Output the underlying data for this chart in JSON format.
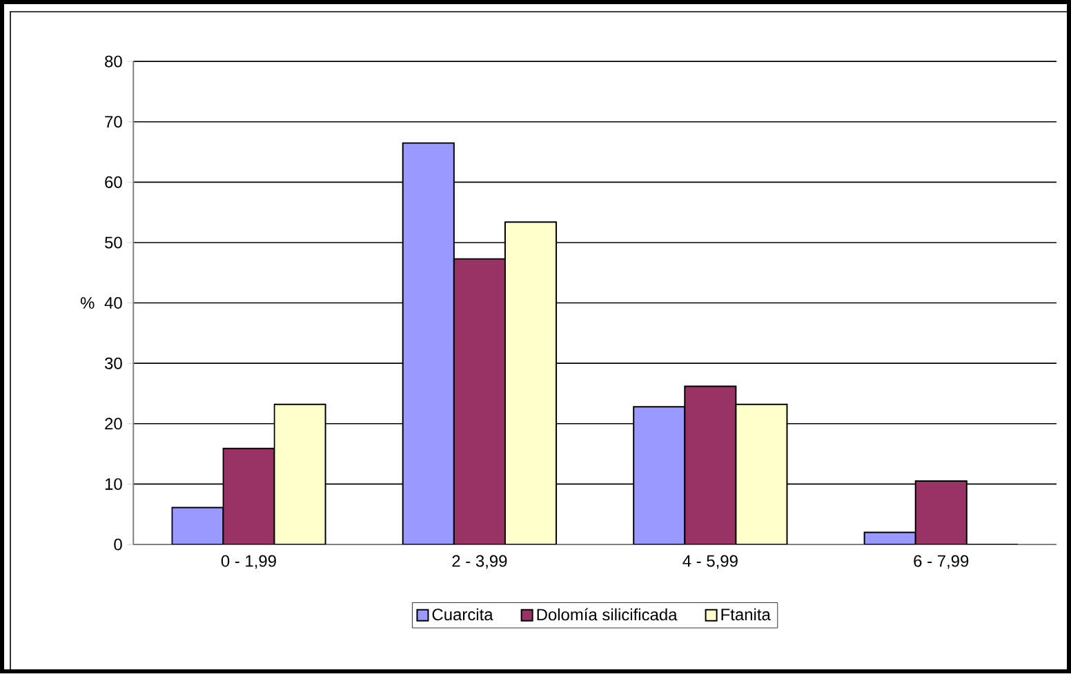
{
  "chart_data": {
    "type": "bar",
    "ylabel": "%",
    "categories": [
      "0 - 1,99",
      "2 - 3,99",
      "4 - 5,99",
      "6 - 7,99"
    ],
    "series": [
      {
        "name": "Cuarcita",
        "color": "#9999ff",
        "values": [
          6.1,
          66.5,
          22.8,
          2.0
        ]
      },
      {
        "name": "Dolomía silicificada",
        "color": "#993366",
        "values": [
          15.9,
          47.3,
          26.2,
          10.5
        ]
      },
      {
        "name": "Ftanita",
        "color": "#ffffcc",
        "values": [
          23.2,
          53.4,
          23.2,
          0
        ]
      }
    ],
    "ylim": [
      0,
      80
    ],
    "yticks": [
      0,
      10,
      20,
      30,
      40,
      50,
      60,
      70,
      80
    ],
    "grid": "y",
    "legend": "bottom"
  }
}
